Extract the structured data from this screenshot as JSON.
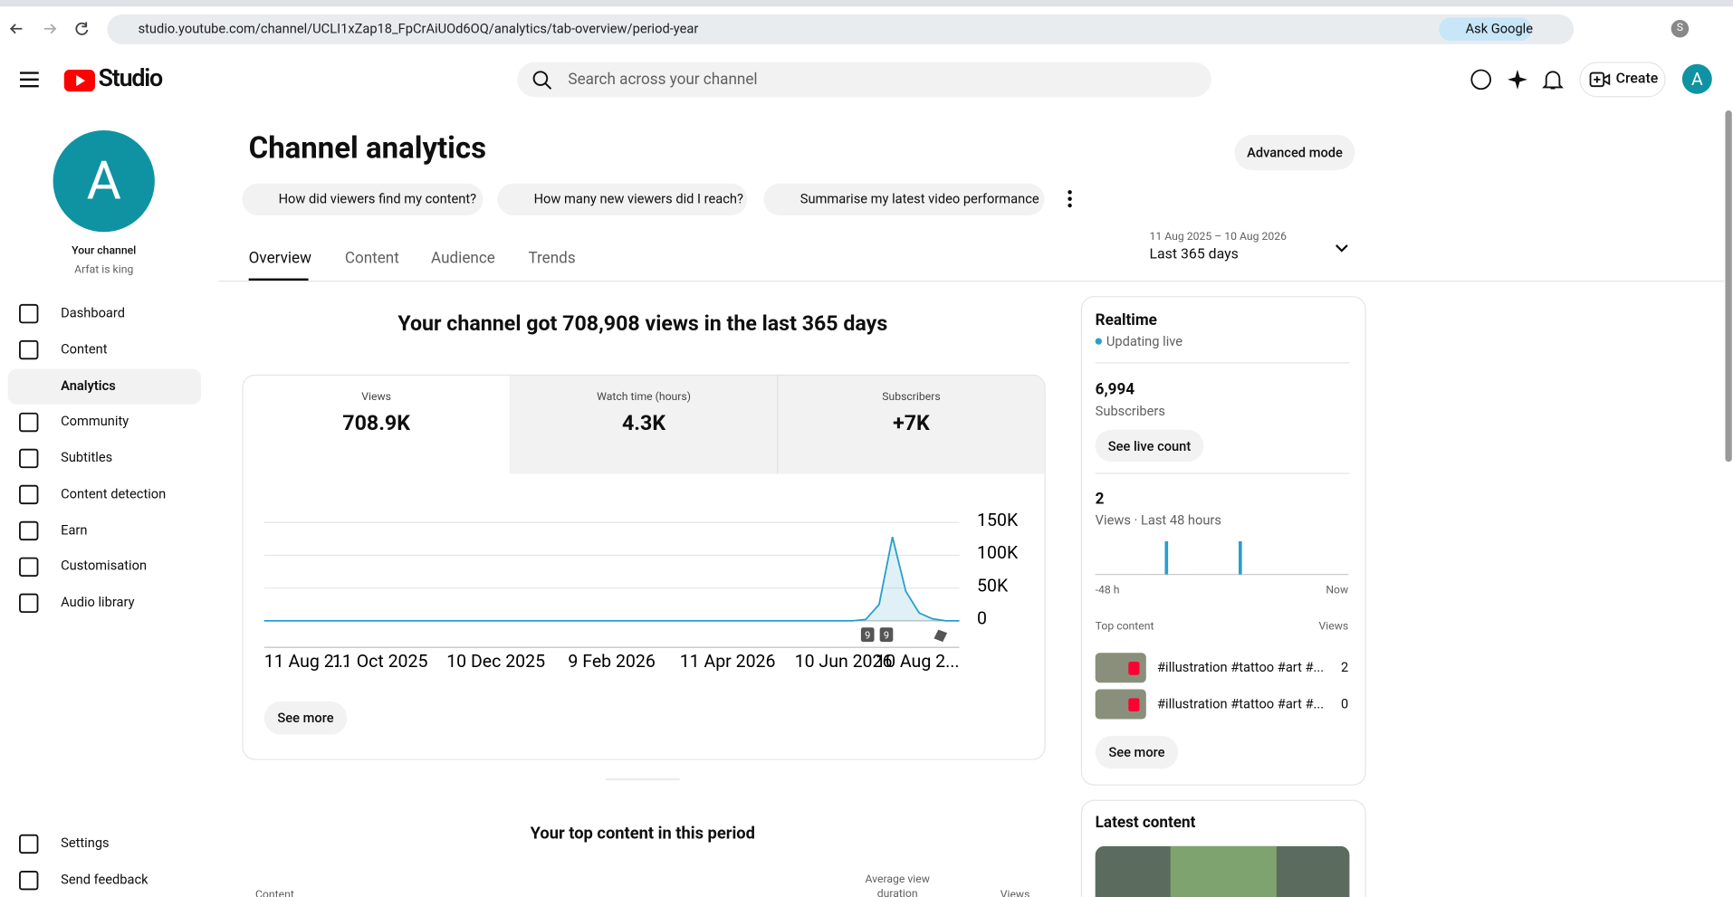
{
  "browser": {
    "url": "studio.youtube.com/channel/UCLI1xZap18_FpCrAiUOd6OQ/analytics/tab-overview/period-year",
    "ask_google": "Ask Google"
  },
  "header": {
    "logo": "Studio",
    "search_placeholder": "Search across your channel",
    "create": "Create",
    "avatar": "A"
  },
  "sidebar": {
    "avatar": "A",
    "channel_label": "Your channel",
    "channel_name": "Arfat is king",
    "nav": [
      "Dashboard",
      "Content",
      "Analytics",
      "Community",
      "Subtitles",
      "Content detection",
      "Earn",
      "Customisation",
      "Audio library"
    ],
    "footer": [
      "Settings",
      "Send feedback"
    ]
  },
  "page": {
    "title": "Channel analytics",
    "advanced_mode": "Advanced mode",
    "prompts": [
      "How did viewers find my content?",
      "How many new viewers did I reach?",
      "Summarise my latest video performance"
    ],
    "tabs": [
      "Overview",
      "Content",
      "Audience",
      "Trends"
    ],
    "date_range": "11 Aug 2025 – 10 Aug 2026",
    "period": "Last 365 days"
  },
  "overview": {
    "headline": "Your channel got 708,908 views in the last 365 days",
    "metrics": [
      {
        "label": "Views",
        "value": "708.9K"
      },
      {
        "label": "Watch time (hours)",
        "value": "4.3K"
      },
      {
        "label": "Subscribers",
        "value": "+7K"
      }
    ],
    "chart": {
      "type": "line",
      "color": "#2a9fcb",
      "x_labels": [
        "11 Aug 2...",
        "11 Oct 2025",
        "10 Dec 2025",
        "9 Feb 2026",
        "11 Apr 2026",
        "10 Jun 2026",
        "10 Aug 2..."
      ],
      "values": [
        0,
        0,
        0,
        0,
        0,
        0,
        0,
        0,
        0,
        0,
        0,
        0,
        0,
        0,
        0,
        0,
        0,
        0,
        0,
        0,
        0,
        0,
        0,
        0,
        0,
        0,
        0,
        0,
        0,
        0,
        0,
        0,
        0,
        0,
        0,
        0,
        0,
        0,
        0,
        0,
        0,
        0,
        0,
        0,
        0,
        2000,
        25000,
        128000,
        45000,
        12000,
        3000,
        0,
        0
      ],
      "ylim": [
        0,
        150000
      ],
      "yticks": [
        {
          "value": 0,
          "label": "0"
        },
        {
          "value": 50000,
          "label": "50K"
        },
        {
          "value": 100000,
          "label": "100K"
        },
        {
          "value": 150000,
          "label": "150K"
        }
      ],
      "annotations": [
        "9",
        "9"
      ]
    },
    "see_more": "See more"
  },
  "realtime": {
    "title": "Realtime",
    "status": "Updating live",
    "subscribers": "6,994",
    "subscribers_label": "Subscribers",
    "live_count": "See live count",
    "views": "2",
    "views_label": "Views · Last 48 hours",
    "chart": {
      "type": "bar",
      "color": "#2a9fcb",
      "values": [
        0,
        0,
        0,
        0,
        0,
        0,
        0,
        0,
        0,
        0,
        0,
        0,
        0,
        1,
        0,
        0,
        0,
        0,
        0,
        0,
        0,
        0,
        0,
        0,
        0,
        0,
        0,
        1,
        0,
        0,
        0,
        0,
        0,
        0,
        0,
        0,
        0,
        0,
        0,
        0,
        0,
        0,
        0,
        0,
        0,
        0,
        0,
        0
      ],
      "start_label": "-48 h",
      "end_label": "Now"
    },
    "top_content_label": "Top content",
    "views_col": "Views",
    "items": [
      {
        "title": "#illustration #tattoo #art #...",
        "views": 2
      },
      {
        "title": "#illustration #tattoo #art #...",
        "views": 0
      }
    ],
    "see_more": "See more"
  },
  "top_content": {
    "title": "Your top content in this period",
    "columns": [
      "Content",
      "Average view duration",
      "Views"
    ]
  },
  "latest_content": {
    "title": "Latest content"
  }
}
